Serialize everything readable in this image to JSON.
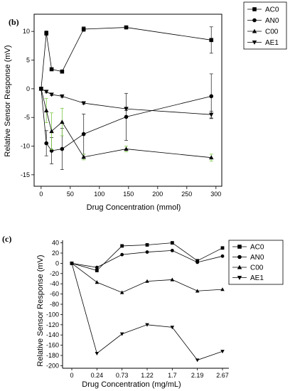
{
  "chart_data": [
    {
      "type": "line",
      "panel_label": "(b)",
      "xlabel": "Drug Concentration (mmol)",
      "ylabel": "Relative Sensor Response (mV)",
      "xlim": [
        -12,
        310
      ],
      "ylim": [
        -17,
        13
      ],
      "xticks": [
        0,
        50,
        100,
        150,
        200,
        250,
        300
      ],
      "yticks": [
        10,
        5,
        0,
        -5,
        -10,
        -15
      ],
      "legend_position": "top-right",
      "x": [
        0,
        9,
        18,
        36,
        73,
        146,
        292
      ],
      "series": [
        {
          "name": "AC0",
          "marker": "square",
          "values": [
            0,
            9.7,
            3.4,
            3.0,
            10.4,
            10.7,
            8.5
          ],
          "errors": [
            0,
            0.4,
            0,
            0,
            0.4,
            0,
            2.3
          ]
        },
        {
          "name": "AN0",
          "marker": "circle",
          "values": [
            0,
            -9.5,
            -10.8,
            -10.5,
            -7.9,
            -4.9,
            -1.3
          ],
          "errors": [
            0,
            2.2,
            2.3,
            3.6,
            3.5,
            4.1,
            3.9
          ]
        },
        {
          "name": "C00",
          "marker": "triangle-up",
          "values": [
            0,
            -3.8,
            -7.4,
            -5.8,
            -11.9,
            -10.5,
            -12.0
          ],
          "errors": [
            0,
            2.1,
            3.2,
            2.4,
            0.5,
            0.5,
            0.6
          ]
        },
        {
          "name": "AE1",
          "marker": "triangle-down",
          "values": [
            0,
            -0.5,
            -1.0,
            -1.3,
            -2.5,
            -3.5,
            -4.5
          ],
          "errors": [
            0,
            0.2,
            0.2,
            0.2,
            0.2,
            0.3,
            0.6
          ]
        }
      ]
    },
    {
      "type": "line",
      "panel_label": "(c)",
      "xlabel": "Drug Concentration (mg/mL)",
      "ylabel": "Relative Sensor Response (mV)",
      "categories": [
        "0",
        "0.24",
        "0.73",
        "1.22",
        "1.7",
        "2.19",
        "2.67"
      ],
      "ylim": [
        -205,
        45
      ],
      "yticks": [
        40,
        20,
        0,
        -20,
        -40,
        -60,
        -80,
        -100,
        -120,
        -140,
        -160,
        -180,
        -200
      ],
      "legend_position": "top-right",
      "series": [
        {
          "name": "AC0",
          "marker": "square",
          "values": [
            0,
            -14,
            34,
            36,
            40,
            5,
            30
          ]
        },
        {
          "name": "AN0",
          "marker": "circle",
          "values": [
            0,
            -8,
            17,
            22,
            25,
            2,
            14
          ]
        },
        {
          "name": "C00",
          "marker": "triangle-up",
          "values": [
            0,
            -37,
            -57,
            -35,
            -32,
            -54,
            -51
          ]
        },
        {
          "name": "AE1",
          "marker": "triangle-down",
          "values": [
            0,
            -176,
            -138,
            -120,
            -125,
            -189,
            -172
          ]
        }
      ]
    }
  ]
}
